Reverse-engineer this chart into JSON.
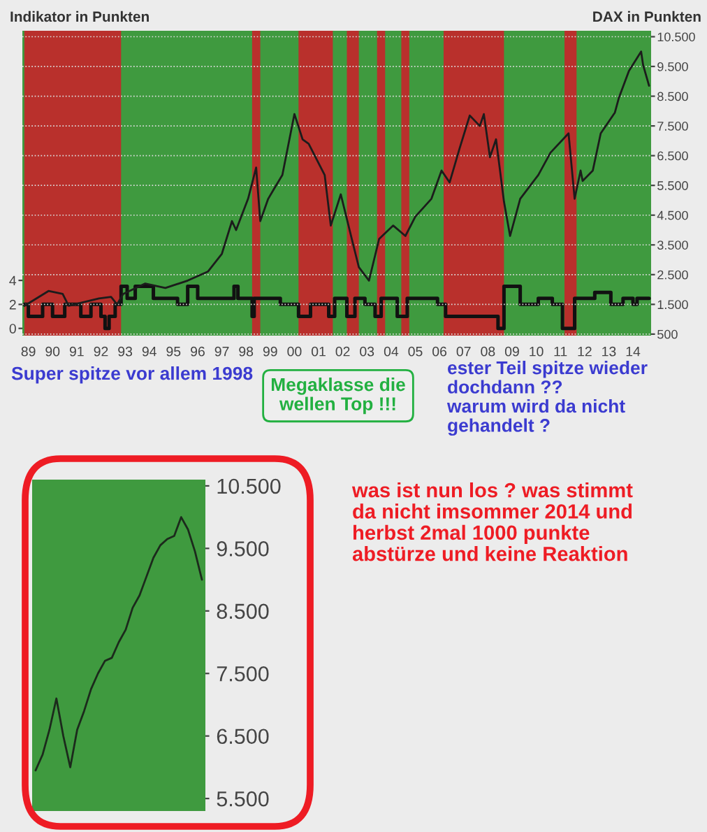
{
  "chart_data": [
    {
      "type": "line",
      "ylabel": "Indikator in Punkten",
      "y2label": "DAX in Punkten",
      "xlim": [
        "1989-04",
        "2015-04"
      ],
      "xticks": [
        {
          "value": "1989-07",
          "label": "89"
        },
        {
          "value": "1990-07",
          "label": "90"
        },
        {
          "value": "1991-07",
          "label": "91"
        },
        {
          "value": "1992-07",
          "label": "92"
        },
        {
          "value": "1993-07",
          "label": "93"
        },
        {
          "value": "1994-07",
          "label": "94"
        },
        {
          "value": "1995-07",
          "label": "95"
        },
        {
          "value": "1996-07",
          "label": "96"
        },
        {
          "value": "1997-07",
          "label": "97"
        },
        {
          "value": "1998-07",
          "label": "98"
        },
        {
          "value": "1999-07",
          "label": "99"
        },
        {
          "value": "2000-07",
          "label": "00"
        },
        {
          "value": "2001-07",
          "label": "01"
        },
        {
          "value": "2002-07",
          "label": "02"
        },
        {
          "value": "2003-07",
          "label": "03"
        },
        {
          "value": "2004-07",
          "label": "04"
        },
        {
          "value": "2005-07",
          "label": "05"
        },
        {
          "value": "2006-07",
          "label": "06"
        },
        {
          "value": "2007-07",
          "label": "07"
        },
        {
          "value": "2008-07",
          "label": "08"
        },
        {
          "value": "2009-07",
          "label": "09"
        },
        {
          "value": "2010-07",
          "label": "10"
        },
        {
          "value": "2011-07",
          "label": "11"
        },
        {
          "value": "2012-07",
          "label": "12"
        },
        {
          "value": "2013-07",
          "label": "13"
        },
        {
          "value": "2014-07",
          "label": "14"
        }
      ],
      "ylim": [
        -0.6,
        24.8
      ],
      "yticks": [
        0,
        2,
        4
      ],
      "y2lim": [
        450,
        10700
      ],
      "y2ticks": [
        {
          "value": 500,
          "label": "500"
        },
        {
          "value": 1500,
          "label": "1.500"
        },
        {
          "value": 2500,
          "label": "2.500"
        },
        {
          "value": 3500,
          "label": "3.500"
        },
        {
          "value": 4500,
          "label": "4.500"
        },
        {
          "value": 5500,
          "label": "5.500"
        },
        {
          "value": 6500,
          "label": "6.500"
        },
        {
          "value": 7500,
          "label": "7.500"
        },
        {
          "value": 8500,
          "label": "8.500"
        },
        {
          "value": 9500,
          "label": "9.500"
        },
        {
          "value": 10500,
          "label": "10.500"
        }
      ],
      "grid": "y",
      "bands": [
        {
          "axis": "x",
          "from": "1989-05",
          "to": "1993-05",
          "color": "#b9302c"
        },
        {
          "axis": "x",
          "from": "1998-10",
          "to": "1999-02",
          "color": "#b9302c"
        },
        {
          "axis": "x",
          "from": "2000-09",
          "to": "2002-02",
          "color": "#b9302c"
        },
        {
          "axis": "x",
          "from": "2002-09",
          "to": "2003-03",
          "color": "#b9302c"
        },
        {
          "axis": "x",
          "from": "2003-12",
          "to": "2004-04",
          "color": "#b9302c"
        },
        {
          "axis": "x",
          "from": "2004-12",
          "to": "2005-04",
          "color": "#b9302c"
        },
        {
          "axis": "x",
          "from": "2006-09",
          "to": "2009-03",
          "color": "#b9302c"
        },
        {
          "axis": "x",
          "from": "2011-09",
          "to": "2012-03",
          "color": "#b9302c"
        }
      ],
      "series": [
        {
          "type": "line",
          "axis": "y2",
          "color": "#1c1c1c",
          "x": [
            "1989-05",
            "1990-05",
            "1990-12",
            "1991-03",
            "1992-06",
            "1992-12",
            "1993-03",
            "1993-06",
            "1994-05",
            "1995-03",
            "1996-02",
            "1996-12",
            "1997-07",
            "1997-12",
            "1998-02",
            "1998-08",
            "1998-12",
            "1999-02",
            "1999-06",
            "1999-09",
            "2000-01",
            "2000-07",
            "2000-11",
            "2001-02",
            "2001-10",
            "2002-01",
            "2002-06",
            "2002-12",
            "2003-03",
            "2003-08",
            "2004-01",
            "2004-08",
            "2005-02",
            "2005-07",
            "2006-03",
            "2006-08",
            "2006-12",
            "2007-05",
            "2007-10",
            "2008-03",
            "2008-05",
            "2008-08",
            "2008-11",
            "2009-03",
            "2009-06",
            "2009-11",
            "2010-08",
            "2011-02",
            "2011-11",
            "2012-02",
            "2012-05",
            "2012-06",
            "2012-11",
            "2013-03",
            "2013-10",
            "2013-12",
            "2014-05",
            "2014-11",
            "2014-12",
            "2015-03"
          ],
          "values": [
            1450,
            1950,
            1850,
            1450,
            1700,
            1750,
            1500,
            1850,
            2200,
            2050,
            2300,
            2600,
            3200,
            4300,
            4000,
            5050,
            6100,
            4300,
            5050,
            5400,
            5850,
            7900,
            7050,
            6900,
            5850,
            4150,
            5200,
            3550,
            2750,
            2300,
            3700,
            4150,
            3800,
            4450,
            5050,
            6000,
            5600,
            6750,
            7850,
            7500,
            7900,
            6450,
            7050,
            4950,
            3800,
            5050,
            5850,
            6600,
            7250,
            5050,
            6000,
            5650,
            6000,
            7250,
            7950,
            8450,
            9350,
            10000,
            9550,
            8850
          ]
        },
        {
          "type": "step",
          "axis": "y",
          "color": "#111111",
          "x": [
            "1989-05",
            "1989-07",
            "1990-02",
            "1990-07",
            "1991-01",
            "1991-09",
            "1992-02",
            "1992-07",
            "1992-09",
            "1992-11",
            "1993-02",
            "1993-05",
            "1993-08",
            "1993-12",
            "1994-09",
            "1995-09",
            "1996-02",
            "1996-07",
            "1998-01",
            "1998-03",
            "1998-10",
            "1998-11",
            "1999-12",
            "2000-09",
            "2001-03",
            "2001-12",
            "2002-03",
            "2002-09",
            "2003-01",
            "2003-06",
            "2003-11",
            "2004-02",
            "2004-10",
            "2005-03",
            "2006-06",
            "2006-10",
            "2008-12",
            "2009-03",
            "2009-11",
            "2010-08",
            "2011-03",
            "2011-08",
            "2012-02",
            "2012-12",
            "2013-08",
            "2014-02",
            "2014-07",
            "2014-09",
            "2015-03"
          ],
          "values": [
            2,
            1,
            2,
            1,
            2,
            1,
            2,
            1,
            0,
            1,
            2,
            3.5,
            2.5,
            3.5,
            2.5,
            2,
            3.5,
            2.5,
            3.5,
            2.5,
            1,
            2.5,
            2,
            1,
            2,
            1,
            2.5,
            1,
            2.5,
            2,
            1,
            2.5,
            1,
            2.5,
            2,
            1,
            0,
            3.5,
            2,
            2.5,
            2,
            0,
            2.5,
            3,
            2,
            2.5,
            2,
            2.5,
            2.5
          ]
        }
      ],
      "annotations": [
        "Super spitze vor allem 1998",
        "Megaklasse die\nwellen Top !!!",
        "ester Teil spitze wieder\ndochdann ??\nwarum wird da nicht\ngehandelt ?"
      ]
    },
    {
      "type": "line",
      "categories": [
        null,
        null,
        null,
        null,
        null,
        null,
        null,
        null,
        null,
        null,
        null,
        null,
        null,
        null,
        null,
        null,
        null,
        null,
        null,
        null,
        null,
        null,
        null,
        null,
        null
      ],
      "ylim": [
        5300,
        10600
      ],
      "yticks": [
        {
          "value": 5500,
          "label": "5.500"
        },
        {
          "value": 6500,
          "label": "6.500"
        },
        {
          "value": 7500,
          "label": "7.500"
        },
        {
          "value": 8500,
          "label": "8.500"
        },
        {
          "value": 9500,
          "label": "9.500"
        },
        {
          "value": 10500,
          "label": "10.500"
        }
      ],
      "series": [
        {
          "color": "#1c2a1c",
          "values": [
            5950,
            6200,
            6600,
            7100,
            6500,
            6000,
            6600,
            6900,
            7250,
            7500,
            7700,
            7750,
            8000,
            8200,
            8550,
            8750,
            9050,
            9350,
            9550,
            9650,
            9700,
            10000,
            9800,
            9450,
            9000
          ]
        }
      ],
      "annotations": [
        "was ist nun los ? was stimmt\nda nicht imsommer 2014 und\nherbst 2mal 1000 punkte\nabstürze und keine Reaktion"
      ]
    }
  ]
}
